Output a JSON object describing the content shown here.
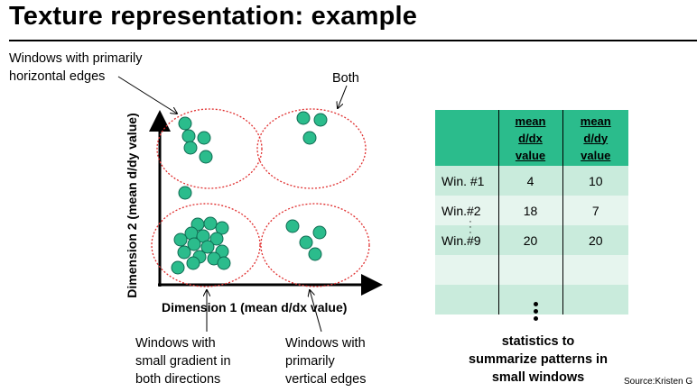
{
  "title": "Texture representation: example",
  "labels": {
    "horizontal_edges": "Windows with primarily\nhorizontal edges",
    "both": "Both",
    "y_axis": "Dimension 2 (mean d/dy value)",
    "x_axis": "Dimension 1 (mean d/dx value)",
    "small_gradient": "Windows with\nsmall gradient in\nboth directions",
    "vertical_edges": "Windows with\nprimarily\nvertical edges",
    "statistics": "statistics to\nsummarize patterns in\nsmall windows",
    "source": "Source:Kristen G",
    "table_row_ellipsis": "⋮",
    "table_continue_ellipsis": "⋮"
  },
  "table": {
    "headers": [
      "",
      "mean\nd/dx\nvalue",
      "mean\nd/dy\nvalue"
    ],
    "rows": [
      [
        "Win. #1",
        "4",
        "10"
      ],
      [
        "Win.#2",
        "18",
        "7"
      ],
      [
        "Win.#9",
        "20",
        "20"
      ],
      [
        "",
        "",
        ""
      ],
      [
        "",
        "",
        ""
      ]
    ]
  },
  "colors": {
    "dot_fill": "#2bbc8c",
    "dot_stroke": "#0f6b52",
    "ellipse_stroke": "#e03030",
    "table_header": "#2bbc8c",
    "table_row_dark": "#c9ebdc",
    "table_row_light": "#e6f5ee"
  },
  "icons": [
    "arrow-up-icon",
    "arrow-right-icon",
    "vertical-ellipsis-icon"
  ]
}
